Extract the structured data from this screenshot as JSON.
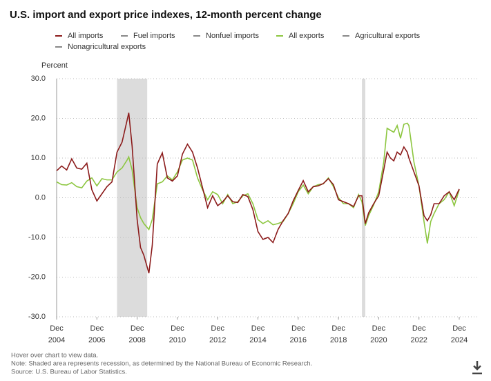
{
  "chart_data": {
    "type": "line",
    "title": "U.S. import and export price indexes, 12-month percent change",
    "y_label": "Percent",
    "x": [
      "2004-12",
      "2005-03",
      "2005-06",
      "2005-09",
      "2005-12",
      "2006-03",
      "2006-06",
      "2006-09",
      "2006-12",
      "2007-03",
      "2007-06",
      "2007-09",
      "2007-12",
      "2008-03",
      "2008-06",
      "2008-07",
      "2008-09",
      "2008-12",
      "2009-02",
      "2009-04",
      "2009-07",
      "2009-09",
      "2009-12",
      "2010-03",
      "2010-06",
      "2010-09",
      "2010-12",
      "2011-03",
      "2011-06",
      "2011-09",
      "2011-12",
      "2012-03",
      "2012-06",
      "2012-09",
      "2012-12",
      "2013-03",
      "2013-06",
      "2013-09",
      "2013-12",
      "2014-03",
      "2014-06",
      "2014-09",
      "2014-12",
      "2015-03",
      "2015-06",
      "2015-09",
      "2015-12",
      "2016-03",
      "2016-06",
      "2016-09",
      "2016-12",
      "2017-03",
      "2017-06",
      "2017-09",
      "2017-12",
      "2018-03",
      "2018-06",
      "2018-09",
      "2018-12",
      "2019-03",
      "2019-06",
      "2019-09",
      "2019-12",
      "2020-02",
      "2020-04",
      "2020-06",
      "2020-09",
      "2020-12",
      "2021-03",
      "2021-05",
      "2021-07",
      "2021-09",
      "2021-11",
      "2022-01",
      "2022-03",
      "2022-05",
      "2022-06",
      "2022-09",
      "2022-12",
      "2023-03",
      "2023-05",
      "2023-07",
      "2023-09",
      "2023-12",
      "2024-03",
      "2024-06",
      "2024-09",
      "2024-12"
    ],
    "series": [
      {
        "name": "All imports",
        "color": "#8b1a1a",
        "values": [
          6.8,
          8.0,
          7.0,
          9.8,
          7.5,
          7.2,
          8.7,
          2.0,
          -0.8,
          1.0,
          2.8,
          4.0,
          11.5,
          14.0,
          19.5,
          21.4,
          13.0,
          -5.5,
          -12.5,
          -14.5,
          -19.0,
          -12.0,
          8.5,
          11.3,
          5.0,
          4.2,
          5.5,
          11.0,
          13.5,
          11.5,
          7.5,
          2.5,
          -2.5,
          0.5,
          -2.0,
          -1.0,
          0.5,
          -1.0,
          -1.2,
          0.8,
          0.3,
          -3.0,
          -8.5,
          -10.5,
          -10.0,
          -11.3,
          -8.0,
          -5.8,
          -4.0,
          -0.8,
          1.8,
          4.3,
          1.5,
          2.8,
          3.0,
          3.6,
          4.8,
          3.3,
          -0.5,
          -1.0,
          -1.5,
          -2.2,
          0.5,
          0.5,
          -6.5,
          -3.8,
          -1.5,
          0.5,
          7.0,
          11.5,
          10.0,
          9.3,
          11.5,
          10.8,
          12.8,
          11.5,
          10.0,
          6.5,
          3.0,
          -4.5,
          -5.8,
          -4.3,
          -1.5,
          -1.5,
          0.5,
          1.5,
          -0.5,
          2.2
        ]
      },
      {
        "name": "Fuel imports",
        "color": "#888888"
      },
      {
        "name": "Nonfuel imports",
        "color": "#888888"
      },
      {
        "name": "All exports",
        "color": "#8cc63f",
        "values": [
          4.0,
          3.3,
          3.2,
          3.8,
          2.8,
          2.5,
          4.2,
          5.0,
          3.0,
          4.8,
          4.5,
          4.5,
          6.5,
          7.5,
          9.5,
          10.3,
          7.0,
          -2.5,
          -5.0,
          -6.5,
          -8.0,
          -5.5,
          3.5,
          4.0,
          5.5,
          4.5,
          6.5,
          9.5,
          10.0,
          9.5,
          5.0,
          2.0,
          -0.5,
          1.5,
          0.8,
          -1.5,
          0.8,
          -1.5,
          -1.0,
          0.5,
          1.0,
          -1.5,
          -5.5,
          -6.5,
          -5.8,
          -6.8,
          -6.5,
          -6.0,
          -4.0,
          -1.5,
          1.5,
          3.2,
          1.0,
          2.8,
          3.3,
          3.5,
          5.0,
          2.8,
          0.0,
          -1.5,
          -1.5,
          -2.5,
          0.8,
          -1.0,
          -7.0,
          -4.5,
          -1.8,
          1.5,
          9.0,
          17.5,
          17.0,
          16.5,
          18.2,
          15.0,
          18.5,
          18.8,
          18.2,
          9.0,
          3.0,
          -6.0,
          -11.5,
          -6.0,
          -4.0,
          -1.5,
          -0.5,
          1.5,
          -2.0,
          2.0
        ]
      },
      {
        "name": "Agricultural exports",
        "color": "#888888"
      },
      {
        "name": "Nonagricultural exports",
        "color": "#888888"
      }
    ],
    "recessions": [
      [
        "2007-12",
        "2009-06"
      ],
      [
        "2020-02",
        "2020-04"
      ]
    ],
    "xlim": [
      "2004-12",
      "2024-12"
    ],
    "xticks": [
      {
        "value": "2004-12",
        "label": "Dec 2004"
      },
      {
        "value": "2006-12",
        "label": "Dec 2006"
      },
      {
        "value": "2008-12",
        "label": "Dec 2008"
      },
      {
        "value": "2010-12",
        "label": "Dec 2010"
      },
      {
        "value": "2012-12",
        "label": "Dec 2012"
      },
      {
        "value": "2014-12",
        "label": "Dec 2014"
      },
      {
        "value": "2016-12",
        "label": "Dec 2016"
      },
      {
        "value": "2018-12",
        "label": "Dec 2018"
      },
      {
        "value": "2020-12",
        "label": "Dec 2020"
      },
      {
        "value": "2022-12",
        "label": "Dec 2022"
      },
      {
        "value": "2024-12",
        "label": "Dec 2024"
      }
    ],
    "ylim": [
      -30,
      30
    ],
    "yticks": [
      {
        "value": -30,
        "label": "-30.0"
      },
      {
        "value": -20,
        "label": "-20.0"
      },
      {
        "value": -10,
        "label": "-10.0"
      },
      {
        "value": 0,
        "label": "0.0"
      },
      {
        "value": 10,
        "label": "10.0"
      },
      {
        "value": 20,
        "label": "20.0"
      },
      {
        "value": 30,
        "label": "30.0"
      }
    ],
    "grid": true
  },
  "footer": {
    "hint": "Hover over chart to view data.",
    "note": "Note: Shaded area represents recession, as determined by the National Bureau of Economic Research.",
    "source": "Source: U.S. Bureau of Labor Statistics."
  }
}
